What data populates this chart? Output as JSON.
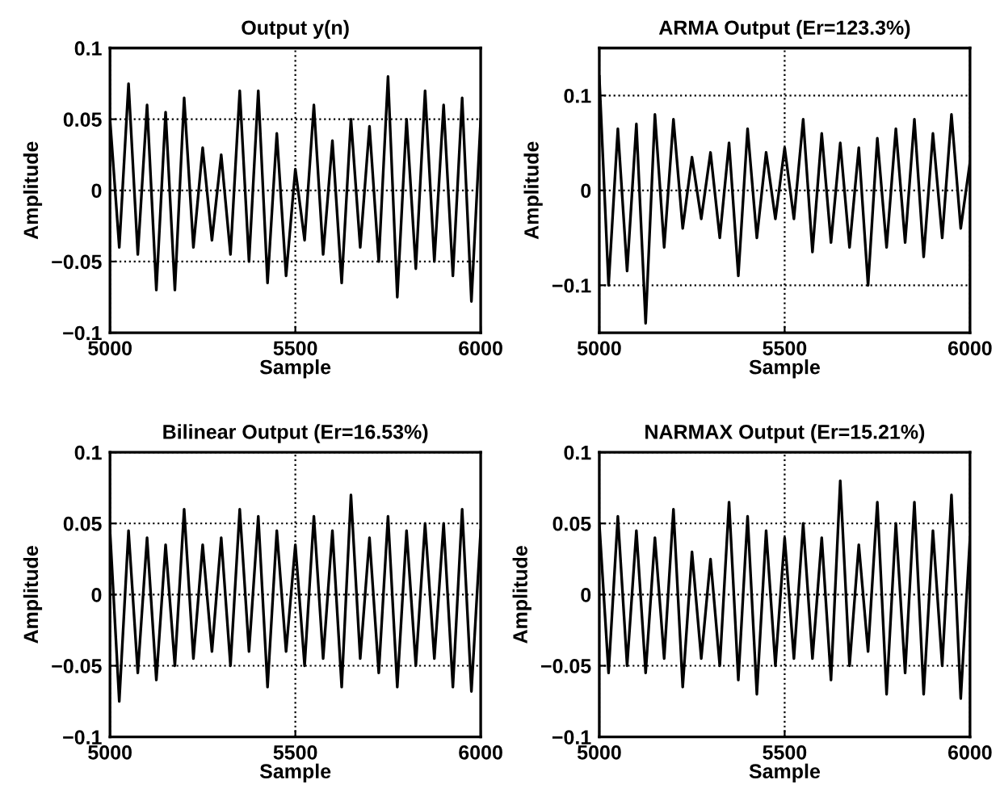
{
  "chart_data": [
    {
      "type": "line",
      "title": "Output y(n)",
      "xlabel": "Sample",
      "ylabel": "Amplitude",
      "color": "#000000",
      "grid": true,
      "xlim": [
        5000,
        6000
      ],
      "xticks": [
        5000,
        5500,
        6000
      ],
      "ylim": [
        -0.1,
        0.1
      ],
      "yticks": [
        -0.1,
        -0.05,
        0,
        0.05,
        0.1
      ],
      "x": [
        5000,
        5025,
        5050,
        5075,
        5100,
        5125,
        5150,
        5175,
        5200,
        5225,
        5250,
        5275,
        5300,
        5325,
        5350,
        5375,
        5400,
        5425,
        5450,
        5475,
        5500,
        5525,
        5550,
        5575,
        5600,
        5625,
        5650,
        5675,
        5700,
        5725,
        5750,
        5775,
        5800,
        5825,
        5850,
        5875,
        5900,
        5925,
        5950,
        5975,
        6000
      ],
      "values": [
        0.05,
        -0.04,
        0.075,
        -0.045,
        0.06,
        -0.07,
        0.055,
        -0.07,
        0.065,
        -0.04,
        0.03,
        -0.035,
        0.025,
        -0.045,
        0.07,
        -0.05,
        0.07,
        -0.065,
        0.04,
        -0.06,
        0.015,
        -0.035,
        0.06,
        -0.045,
        0.035,
        -0.065,
        0.05,
        -0.04,
        0.045,
        -0.05,
        0.08,
        -0.075,
        0.05,
        -0.055,
        0.07,
        -0.05,
        0.06,
        -0.06,
        0.065,
        -0.078,
        0.05
      ]
    },
    {
      "type": "line",
      "title": "ARMA Output (Er=123.3%)",
      "xlabel": "Sample",
      "ylabel": "Amplitude",
      "color": "#000000",
      "grid": true,
      "xlim": [
        5000,
        6000
      ],
      "xticks": [
        5000,
        5500,
        6000
      ],
      "ylim": [
        -0.15,
        0.15
      ],
      "yticks": [
        -0.1,
        0,
        0.1
      ],
      "x": [
        5000,
        5025,
        5050,
        5075,
        5100,
        5125,
        5150,
        5175,
        5200,
        5225,
        5250,
        5275,
        5300,
        5325,
        5350,
        5375,
        5400,
        5425,
        5450,
        5475,
        5500,
        5525,
        5550,
        5575,
        5600,
        5625,
        5650,
        5675,
        5700,
        5725,
        5750,
        5775,
        5800,
        5825,
        5850,
        5875,
        5900,
        5925,
        5950,
        5975,
        6000
      ],
      "values": [
        0.12,
        -0.1,
        0.065,
        -0.085,
        0.07,
        -0.14,
        0.08,
        -0.06,
        0.075,
        -0.04,
        0.035,
        -0.03,
        0.04,
        -0.05,
        0.05,
        -0.09,
        0.065,
        -0.05,
        0.04,
        -0.03,
        0.045,
        -0.03,
        0.075,
        -0.065,
        0.06,
        -0.055,
        0.05,
        -0.06,
        0.045,
        -0.1,
        0.055,
        -0.06,
        0.065,
        -0.055,
        0.075,
        -0.07,
        0.06,
        -0.05,
        0.08,
        -0.04,
        0.03
      ]
    },
    {
      "type": "line",
      "title": "Bilinear Output (Er=16.53%)",
      "xlabel": "Sample",
      "ylabel": "Amplitude",
      "color": "#000000",
      "grid": true,
      "xlim": [
        5000,
        6000
      ],
      "xticks": [
        5000,
        5500,
        6000
      ],
      "ylim": [
        -0.1,
        0.1
      ],
      "yticks": [
        -0.1,
        -0.05,
        0,
        0.05,
        0.1
      ],
      "x": [
        5000,
        5025,
        5050,
        5075,
        5100,
        5125,
        5150,
        5175,
        5200,
        5225,
        5250,
        5275,
        5300,
        5325,
        5350,
        5375,
        5400,
        5425,
        5450,
        5475,
        5500,
        5525,
        5550,
        5575,
        5600,
        5625,
        5650,
        5675,
        5700,
        5725,
        5750,
        5775,
        5800,
        5825,
        5850,
        5875,
        5900,
        5925,
        5950,
        5975,
        6000
      ],
      "values": [
        0.045,
        -0.075,
        0.045,
        -0.055,
        0.04,
        -0.06,
        0.035,
        -0.05,
        0.06,
        -0.045,
        0.035,
        -0.04,
        0.04,
        -0.05,
        0.06,
        -0.04,
        0.055,
        -0.065,
        0.045,
        -0.04,
        0.035,
        -0.05,
        0.055,
        -0.045,
        0.045,
        -0.065,
        0.07,
        -0.045,
        0.04,
        -0.055,
        0.055,
        -0.065,
        0.045,
        -0.05,
        0.05,
        -0.045,
        0.05,
        -0.065,
        0.06,
        -0.068,
        0.045
      ]
    },
    {
      "type": "line",
      "title": "NARMAX Output (Er=15.21%)",
      "xlabel": "Sample",
      "ylabel": "Amplitude",
      "color": "#000000",
      "grid": true,
      "xlim": [
        5000,
        6000
      ],
      "xticks": [
        5000,
        5500,
        6000
      ],
      "ylim": [
        -0.1,
        0.1
      ],
      "yticks": [
        -0.1,
        -0.05,
        0,
        0.05,
        0.1
      ],
      "x": [
        5000,
        5025,
        5050,
        5075,
        5100,
        5125,
        5150,
        5175,
        5200,
        5225,
        5250,
        5275,
        5300,
        5325,
        5350,
        5375,
        5400,
        5425,
        5450,
        5475,
        5500,
        5525,
        5550,
        5575,
        5600,
        5625,
        5650,
        5675,
        5700,
        5725,
        5750,
        5775,
        5800,
        5825,
        5850,
        5875,
        5900,
        5925,
        5950,
        5975,
        6000
      ],
      "values": [
        0.05,
        -0.055,
        0.055,
        -0.05,
        0.045,
        -0.055,
        0.04,
        -0.045,
        0.06,
        -0.065,
        0.03,
        -0.045,
        0.025,
        -0.05,
        0.065,
        -0.06,
        0.055,
        -0.07,
        0.045,
        -0.05,
        0.04,
        -0.045,
        0.05,
        -0.045,
        0.04,
        -0.06,
        0.08,
        -0.05,
        0.035,
        -0.04,
        0.065,
        -0.07,
        0.05,
        -0.055,
        0.065,
        -0.07,
        0.045,
        -0.05,
        0.07,
        -0.073,
        0.04
      ]
    }
  ]
}
